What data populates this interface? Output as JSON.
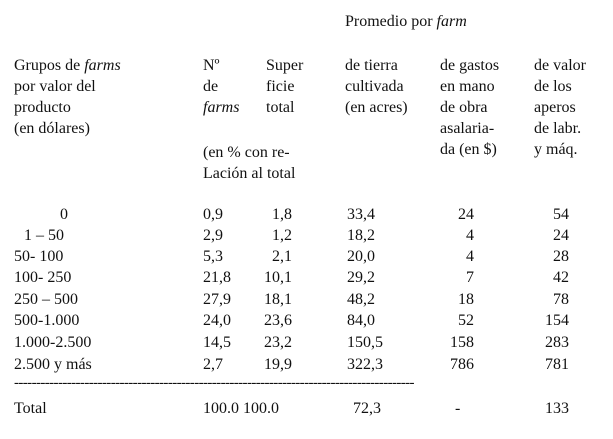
{
  "header": {
    "promedio": "Promedio por ",
    "promedio_italic": "farm",
    "group": {
      "l1a": "Grupos de ",
      "l1b": "farms",
      "l2": "por valor del",
      "l3": "producto",
      "l4": "(en dólares)"
    },
    "num": {
      "l1": "Nº",
      "l2": "de",
      "l3": "farms"
    },
    "sup": {
      "l1": "Super",
      "l2": "ficie",
      "l3": "total"
    },
    "pct": {
      "l1": "(en % con re-",
      "l2": "Lación al total"
    },
    "tierra": {
      "l1": "de tierra",
      "l2": "cultivada",
      "l3": "(en acres)"
    },
    "gastos": {
      "l1": "de gastos",
      "l2": "en mano",
      "l3": "de obra",
      "l4": "asalaria-",
      "l5": "da (en $)"
    },
    "valor": {
      "l1": "de valor",
      "l2": "de los",
      "l3": "aperos",
      "l4": "de labr.",
      "l5": "y máq."
    }
  },
  "rows": [
    {
      "group": "0",
      "num": "0,9",
      "sup": "1,8",
      "tierra": "33,4",
      "gastos": "24",
      "valor": "54"
    },
    {
      "group": "1 – 50",
      "num": "2,9",
      "sup": "1,2",
      "tierra": "18,2",
      "gastos": "4",
      "valor": "24"
    },
    {
      "group": "50- 100",
      "num": "5,3",
      "sup": "2,1",
      "tierra": "20,0",
      "gastos": "4",
      "valor": "28"
    },
    {
      "group": "100- 250",
      "num": "21,8",
      "sup": "10,1",
      "tierra": "29,2",
      "gastos": "7",
      "valor": "42"
    },
    {
      "group": "250 – 500",
      "num": "27,9",
      "sup": "18,1",
      "tierra": "48,2",
      "gastos": "18",
      "valor": "78"
    },
    {
      "group": "500-1.000",
      "num": "24,0",
      "sup": "23,6",
      "tierra": "84,0",
      "gastos": "52",
      "valor": "154"
    },
    {
      "group": "1.000-2.500",
      "num": "14,5",
      "sup": "23,2",
      "tierra": "150,5",
      "gastos": "158",
      "valor": "283"
    },
    {
      "group": "2.500 y más",
      "num": "2,7",
      "sup": "19,9",
      "tierra": "322,3",
      "gastos": "786",
      "valor": "781"
    }
  ],
  "separator": "-------------------------------------------------------------------------------------------",
  "total": {
    "label": "Total",
    "num": "100.0",
    "sup": "100.0",
    "tierra": "72,3",
    "gastos": "-",
    "valor": "133"
  }
}
